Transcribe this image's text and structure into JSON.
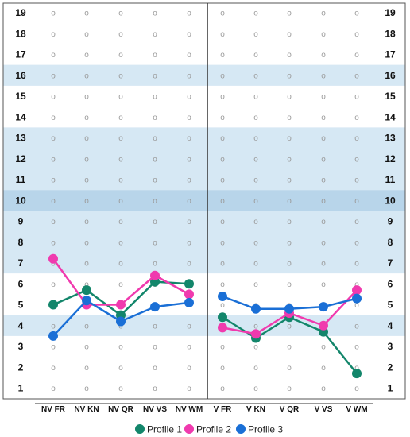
{
  "chart_data": {
    "type": "line",
    "y_levels": [
      "1",
      "2",
      "3",
      "4",
      "5",
      "6",
      "7",
      "8",
      "9",
      "10",
      "11",
      "12",
      "13",
      "14",
      "15",
      "16",
      "17",
      "18",
      "19"
    ],
    "ylim": [
      1,
      19
    ],
    "grid_marker": "o",
    "panels": [
      {
        "categories": [
          "NV FR",
          "NV KN",
          "NV QR",
          "NV VS",
          "NV WM"
        ],
        "series": [
          {
            "name": "Profile 1",
            "color": "#13866b",
            "values": [
              5.0,
              5.7,
              4.5,
              6.1,
              6.0
            ]
          },
          {
            "name": "Profile 2",
            "color": "#f03aae",
            "values": [
              7.2,
              5.0,
              5.0,
              6.4,
              5.5
            ]
          },
          {
            "name": "Profile 3",
            "color": "#1a6fd6",
            "values": [
              3.5,
              5.2,
              4.2,
              4.9,
              5.1
            ]
          }
        ]
      },
      {
        "categories": [
          "V FR",
          "V KN",
          "V QR",
          "V VS",
          "V WM"
        ],
        "series": [
          {
            "name": "Profile 1",
            "color": "#13866b",
            "values": [
              4.4,
              3.4,
              4.4,
              3.7,
              1.7
            ]
          },
          {
            "name": "Profile 2",
            "color": "#f03aae",
            "values": [
              3.9,
              3.6,
              4.6,
              4.0,
              5.7
            ]
          },
          {
            "name": "Profile 3",
            "color": "#1a6fd6",
            "values": [
              5.4,
              4.8,
              4.8,
              4.9,
              5.3
            ]
          }
        ]
      }
    ],
    "bands": [
      {
        "from": 3.5,
        "to": 4.5,
        "color": "#d6e8f4"
      },
      {
        "from": 6.5,
        "to": 9.5,
        "color": "#d6e8f4"
      },
      {
        "from": 9.5,
        "to": 10.5,
        "color": "#b8d5ea"
      },
      {
        "from": 10.5,
        "to": 13.5,
        "color": "#d6e8f4"
      },
      {
        "from": 15.5,
        "to": 16.5,
        "color": "#d6e8f4"
      }
    ],
    "legend": {
      "placement": "bottom",
      "items": [
        {
          "label": "Profile 1",
          "color": "#13866b"
        },
        {
          "label": "Profile 2",
          "color": "#f03aae"
        },
        {
          "label": "Profile 3",
          "color": "#1a6fd6"
        }
      ]
    }
  }
}
